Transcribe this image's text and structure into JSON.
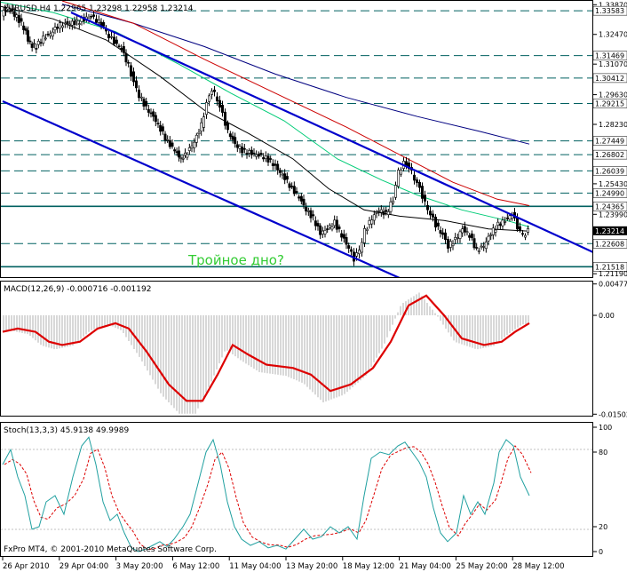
{
  "main": {
    "header": "EURUSD,H4  1.22965 1.23298 1.22958 1.23214",
    "annotation": "Тройное дно?",
    "ylim": [
      1.2103,
      1.3405
    ],
    "current_price": "1.23214",
    "axis_ticks": [
      "1.33870",
      "1.32470",
      "1.31070",
      "1.29630",
      "1.28230",
      "1.25430",
      "1.23990",
      "1.21190"
    ],
    "level_badges": [
      "1.33583",
      "1.31469",
      "1.30412",
      "1.29215",
      "1.27449",
      "1.26802",
      "1.26039",
      "1.24990",
      "1.24365",
      "1.22608",
      "1.21518"
    ]
  },
  "macd": {
    "header": "MACD(12,26,9) -0.000716 -0.001192",
    "ylim": [
      -0.01525,
      0.005
    ],
    "axis_ticks": [
      "0.004770",
      "0.00",
      "-0.015021"
    ]
  },
  "stoch": {
    "header": "Stoch(13,3,3) 45.9138 49.9989",
    "ylim": [
      0,
      100
    ],
    "axis_ticks": [
      "100",
      "80",
      "20",
      "0"
    ]
  },
  "x_labels": [
    "26 Apr 2010",
    "29 Apr 04:00",
    "3 May 20:00",
    "6 May 12:00",
    "11 May 04:00",
    "13 May 20:00",
    "18 May 12:00",
    "21 May 04:00",
    "25 May 20:00",
    "28 May 12:00"
  ],
  "copyright": "FxPro MT4, © 2001-2010 MetaQuotes Software Corp.",
  "colors": {
    "candle": "#000000",
    "trend_channel": "#0000cc",
    "ma_black": "#000000",
    "ma_green": "#00cc77",
    "ma_red": "#cc0000",
    "ma_navy": "#000080",
    "level_line": "#006060",
    "annotation": "#33cc33",
    "macd_signal": "#dd0000",
    "macd_hist": "#b0b0b0",
    "stoch_main": "#20a0a0",
    "stoch_signal": "#dd0000"
  }
}
